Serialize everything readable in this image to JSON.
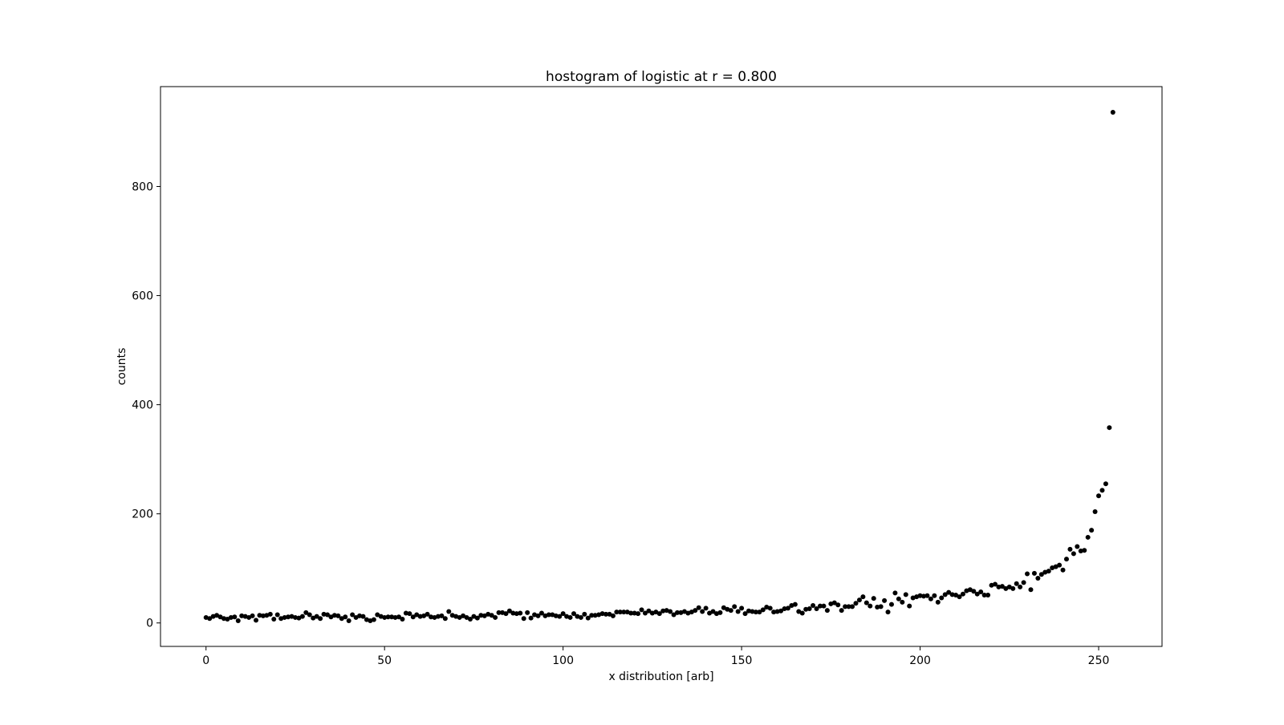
{
  "chart_data": {
    "type": "scatter",
    "title": "hostogram of logistic at r = 0.800",
    "xlabel": "x distribution [arb]",
    "ylabel": "counts",
    "xlim": [
      -12.75,
      267.75
    ],
    "ylim": [
      -43,
      983
    ],
    "xticks": [
      0,
      50,
      100,
      150,
      200,
      250
    ],
    "yticks": [
      0,
      200,
      400,
      600,
      800
    ],
    "grid": false,
    "marker_color": "#000000",
    "x_start": 0,
    "y": [
      10,
      8,
      12,
      14,
      11,
      8,
      7,
      10,
      11,
      4,
      13,
      12,
      10,
      13,
      5,
      14,
      13,
      14,
      16,
      7,
      15,
      8,
      10,
      11,
      12,
      10,
      9,
      12,
      19,
      15,
      9,
      12,
      8,
      16,
      15,
      11,
      14,
      13,
      8,
      11,
      4,
      15,
      10,
      13,
      12,
      6,
      4,
      6,
      15,
      12,
      10,
      11,
      11,
      10,
      11,
      7,
      18,
      17,
      11,
      15,
      12,
      13,
      16,
      11,
      10,
      12,
      13,
      8,
      21,
      14,
      12,
      10,
      13,
      10,
      7,
      12,
      9,
      14,
      13,
      16,
      14,
      10,
      19,
      19,
      17,
      22,
      18,
      17,
      18,
      8,
      19,
      9,
      15,
      13,
      18,
      13,
      15,
      15,
      13,
      12,
      17,
      12,
      10,
      17,
      12,
      10,
      16,
      9,
      14,
      14,
      15,
      17,
      16,
      16,
      13,
      20,
      20,
      20,
      20,
      18,
      18,
      17,
      24,
      18,
      22,
      18,
      20,
      17,
      22,
      23,
      21,
      15,
      19,
      19,
      21,
      18,
      20,
      23,
      28,
      21,
      27,
      18,
      21,
      17,
      19,
      28,
      25,
      23,
      30,
      21,
      27,
      17,
      22,
      21,
      20,
      20,
      24,
      29,
      27,
      20,
      21,
      22,
      26,
      27,
      32,
      34,
      21,
      18,
      25,
      26,
      32,
      26,
      31,
      31,
      23,
      35,
      37,
      33,
      23,
      30,
      30,
      30,
      36,
      42,
      48,
      37,
      31,
      45,
      29,
      30,
      41,
      20,
      34,
      55,
      44,
      38,
      52,
      31,
      46,
      48,
      50,
      49,
      50,
      44,
      50,
      38,
      46,
      52,
      56,
      52,
      51,
      48,
      53,
      59,
      61,
      58,
      53,
      57,
      51,
      51,
      69,
      71,
      66,
      67,
      63,
      66,
      63,
      72,
      66,
      74,
      90,
      61,
      91,
      82,
      89,
      93,
      95,
      101,
      103,
      106,
      97,
      117,
      135,
      127,
      140,
      132,
      133,
      157,
      170,
      204,
      233,
      243,
      255,
      358,
      936
    ]
  }
}
